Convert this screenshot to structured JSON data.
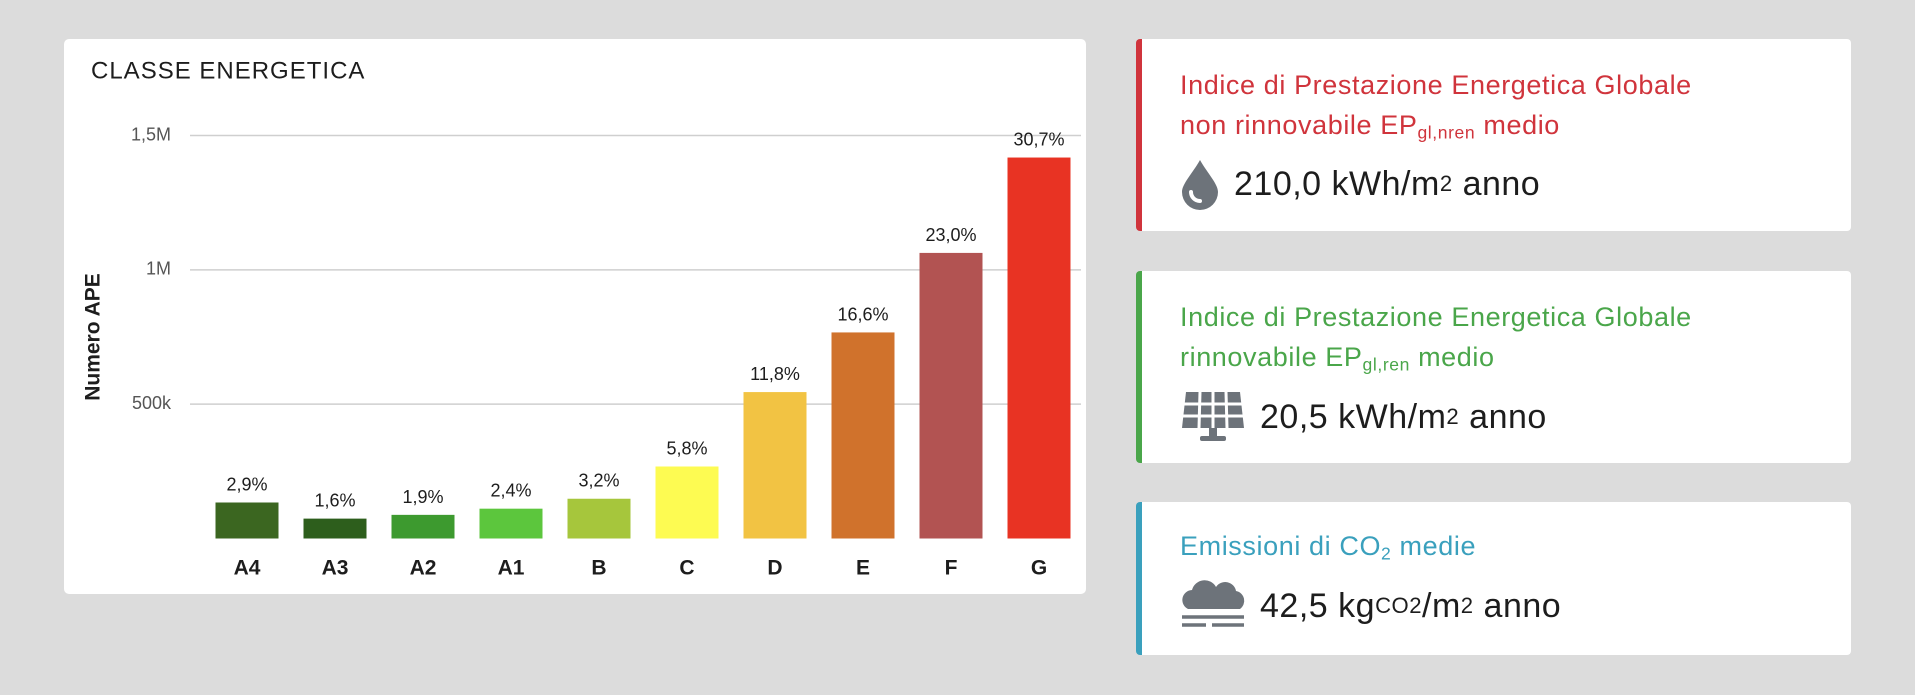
{
  "chart_data": {
    "type": "bar",
    "title": "CLASSE ENERGETICA",
    "y_label": "Numero APE",
    "categories": [
      "A4",
      "A3",
      "A2",
      "A1",
      "B",
      "C",
      "D",
      "E",
      "F",
      "G"
    ],
    "values": [
      134000,
      74000,
      88000,
      111000,
      148000,
      268000,
      545000,
      767000,
      1063000,
      1418000
    ],
    "value_labels": [
      "2,9%",
      "1,6%",
      "1,9%",
      "2,4%",
      "3,2%",
      "5,8%",
      "11,8%",
      "16,6%",
      "23,0%",
      "30,7%"
    ],
    "colors": [
      "#3b6620",
      "#2d5e1c",
      "#3d9a2f",
      "#5cc63d",
      "#a6c63c",
      "#fdfb52",
      "#f2c343",
      "#d0722c",
      "#b25352",
      "#e83323"
    ],
    "ylim": [
      0,
      1500000
    ],
    "yticks": [
      {
        "value": 500000,
        "label": "500k"
      },
      {
        "value": 1000000,
        "label": "1M"
      },
      {
        "value": 1500000,
        "label": "1,5M"
      }
    ],
    "grid": true
  },
  "cards": [
    {
      "title_line1": "Indice di Prestazione Energetica Globale",
      "title_line2": "non rinnovabile EP",
      "title_sub": "gl,nren",
      "title_end": "medio",
      "value": "210,0",
      "unit": "kWh/m",
      "unit_sup": "2",
      "unit_end": "anno"
    },
    {
      "title_line1": "Indice di Prestazione Energetica Globale",
      "title_line2": "rinnovabile EP",
      "title_sub": "gl,ren",
      "title_end": "medio",
      "value": "20,5",
      "unit": "kWh/m",
      "unit_sup": "2",
      "unit_end": "anno"
    },
    {
      "title_line1": "Emissioni di CO",
      "title_sub": "2",
      "title_end": "medie",
      "value": "42,5",
      "unit": "kg",
      "unit_sub": "CO2",
      "unit_mid": "/m",
      "unit_sup": "2",
      "unit_end": "anno"
    }
  ]
}
